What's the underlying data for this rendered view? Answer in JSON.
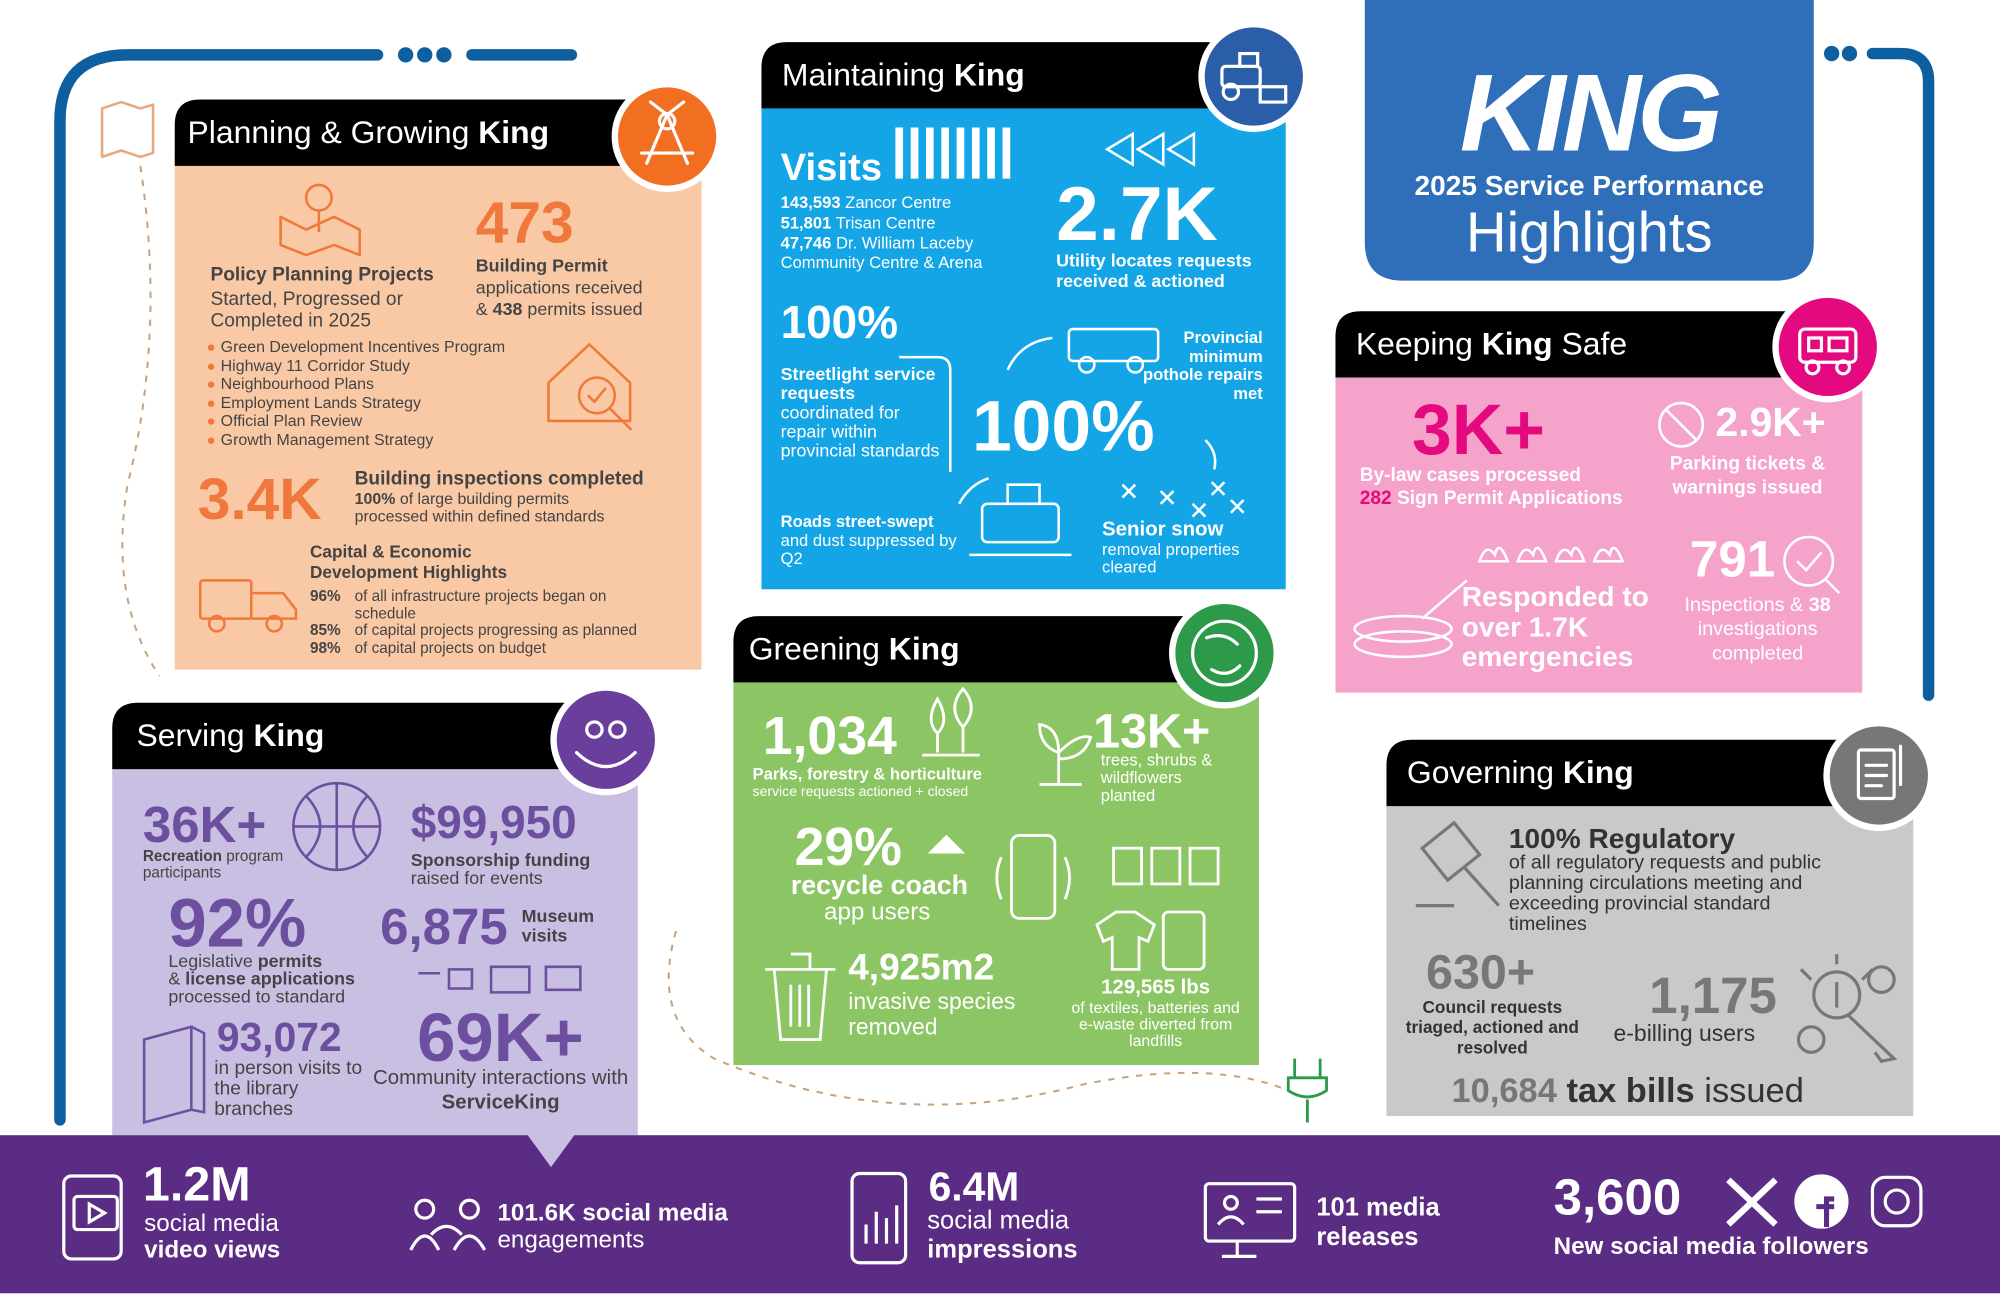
{
  "header": {
    "logo": "KING",
    "subtitle": "2025 Service Performance",
    "title": "Highlights"
  },
  "planning": {
    "title": [
      "Planning & Growing",
      "King"
    ],
    "policy": {
      "heading": "Policy Planning Projects",
      "text": "Started, Progressed or Completed in 2025",
      "items": [
        "Green Development Incentives Program",
        "Highway 11 Corridor Study",
        "Neighbourhood Plans",
        "Employment Lands Strategy",
        "Official Plan Review",
        "Growth Management Strategy"
      ]
    },
    "permits": {
      "value": "473",
      "label": "Building Permit",
      "text1": "applications received",
      "amp": "&",
      "count": "438",
      "text2": "permits issued"
    },
    "inspections": {
      "value": "3.4K",
      "label": "Building inspections completed",
      "pct": "100%",
      "text": "of large building permits processed within defined standards"
    },
    "capital": {
      "heading": "Capital & Economic Development Highlights",
      "rows": [
        {
          "value": "96%",
          "text": "of all infrastructure projects began on schedule"
        },
        {
          "value": "85%",
          "text": "of capital projects progressing as planned"
        },
        {
          "value": "98%",
          "text": "of capital projects on budget"
        }
      ]
    }
  },
  "maintaining": {
    "title": [
      "Maintaining",
      "King"
    ],
    "visits": {
      "label": "Visits",
      "rows": [
        {
          "value": "143,593",
          "place": "Zancor Centre"
        },
        {
          "value": "51,801",
          "place": "Trisan Centre"
        },
        {
          "value": "47,746",
          "place": "Dr. William Laceby Community Centre & Arena"
        }
      ]
    },
    "utility": {
      "value": "2.7K",
      "text": "Utility locates requests received & actioned"
    },
    "streetlight": {
      "value": "100%",
      "label": "Streetlight service requests",
      "text": "coordinated for repair within provincial standards"
    },
    "pothole": {
      "value": "100%",
      "text": "Provincial minimum pothole repairs met"
    },
    "roads": {
      "label": "Roads street-swept",
      "text": "and dust suppressed by Q2"
    },
    "snow": {
      "label": "Senior snow",
      "text": "removal properties cleared"
    }
  },
  "safe": {
    "title": [
      "Keeping",
      "King",
      "Safe"
    ],
    "bylaw": {
      "value": "3K+",
      "text": "By-law cases processed",
      "count": "282",
      "count_text": "Sign Permit Applications"
    },
    "parking": {
      "value": "2.9K+",
      "text": "Parking tickets & warnings issued"
    },
    "emergencies": {
      "text": "Responded to over 1.7K emergencies"
    },
    "inspections": {
      "value": "791",
      "text1": "Inspections &",
      "count": "38",
      "text2": "investigations completed"
    }
  },
  "serving": {
    "title": [
      "Serving",
      "King"
    ],
    "recreation": {
      "value": "36K+",
      "label": "Recreation",
      "text": "program participants"
    },
    "sponsorship": {
      "value": "$99,950",
      "label": "Sponsorship funding",
      "text": "raised for events"
    },
    "permits": {
      "value": "92%",
      "text1": "Legislative",
      "bold1": "permits",
      "text2": "&",
      "bold2": "license applications",
      "text3": "processed to standard"
    },
    "museum": {
      "value": "6,875",
      "text": "Museum visits"
    },
    "library": {
      "value": "93,072",
      "text": "in person visits to the library branches"
    },
    "interactions": {
      "value": "69K+",
      "text": "Community interactions with",
      "bold": "ServiceKing"
    }
  },
  "greening": {
    "title": [
      "Greening",
      "King"
    ],
    "parks": {
      "value": "1,034",
      "label": "Parks, forestry & horticulture",
      "text": "service requests actioned + closed"
    },
    "trees": {
      "value": "13K+",
      "text": "trees, shrubs & wildflowers planted"
    },
    "recycle": {
      "value": "29%",
      "label": "recycle coach",
      "text": "app users"
    },
    "invasive": {
      "value": "4,925m2",
      "text": "invasive species removed"
    },
    "diverted": {
      "value": "129,565 lbs",
      "text": "of textiles, batteries and e-waste diverted from landfills"
    }
  },
  "governing": {
    "title": [
      "Governing",
      "King"
    ],
    "regulatory": {
      "label": "100% Regulatory",
      "text": "of all regulatory requests and public planning circulations meeting and exceeding provincial standard timelines"
    },
    "council": {
      "value": "630+",
      "text": "Council requests triaged, actioned and resolved"
    },
    "ebilling": {
      "value": "1,175",
      "text": "e-billing users"
    },
    "tax": {
      "value": "10,684",
      "label": "tax bills",
      "text": "issued"
    }
  },
  "footer": {
    "video": {
      "value": "1.2M",
      "text": "social media",
      "bold": "video views"
    },
    "engagements": {
      "bold": "101.6K social media",
      "text": "engagements"
    },
    "impressions": {
      "value": "6.4M",
      "text": "social media",
      "bold": "impressions"
    },
    "releases": {
      "bold": "101 media releases"
    },
    "followers": {
      "value": "3,600",
      "bold": "New social media followers"
    }
  }
}
